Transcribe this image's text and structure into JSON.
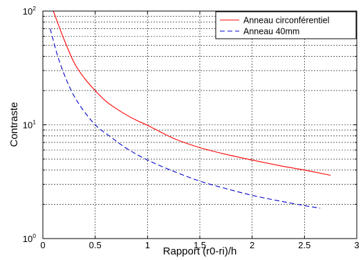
{
  "chart_data": {
    "type": "line",
    "xlabel": "Rapport (r0-ri)/h",
    "ylabel": "Contraste",
    "xlim": [
      0,
      3
    ],
    "ylim": [
      1,
      100
    ],
    "yscale": "log",
    "grid": true,
    "legend_position": "top-right",
    "x_ticks": [
      "0",
      "0.5",
      "1",
      "1.5",
      "2",
      "2.5",
      "3"
    ],
    "y_ticks": [
      {
        "base": "10",
        "exp": "0",
        "value": 1
      },
      {
        "base": "10",
        "exp": "1",
        "value": 10
      },
      {
        "base": "10",
        "exp": "2",
        "value": 100
      }
    ],
    "series": [
      {
        "name": "Anneau circonférentiel",
        "color": "#ff0000",
        "style": "solid",
        "x": [
          0.1,
          0.2,
          0.3,
          0.4,
          0.5,
          0.6,
          0.7,
          0.8,
          0.9,
          1.0,
          1.25,
          1.5,
          1.75,
          2.0,
          2.25,
          2.5,
          2.75
        ],
        "y": [
          100,
          57,
          35,
          25.5,
          20,
          16.2,
          13.9,
          12.2,
          10.9,
          9.9,
          7.6,
          6.3,
          5.5,
          4.9,
          4.4,
          4.0,
          3.6
        ]
      },
      {
        "name": "Anneau 40mm",
        "color": "#0000cc",
        "style": "dashed",
        "x": [
          0.07,
          0.15,
          0.25,
          0.35,
          0.5,
          0.65,
          0.8,
          1.0,
          1.25,
          1.5,
          1.75,
          2.0,
          2.25,
          2.5,
          2.65
        ],
        "y": [
          70,
          38,
          22,
          15,
          10,
          7.8,
          6.2,
          4.9,
          3.9,
          3.2,
          2.75,
          2.4,
          2.15,
          1.95,
          1.85
        ]
      }
    ]
  }
}
